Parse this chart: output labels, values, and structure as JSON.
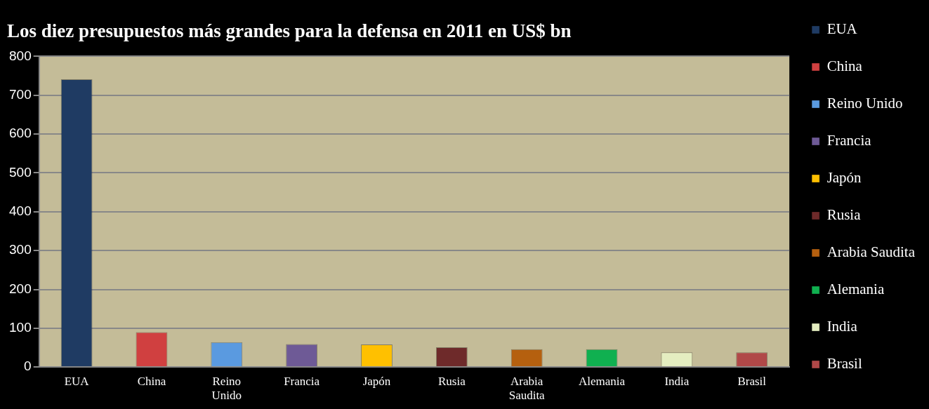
{
  "chart_data": {
    "type": "bar",
    "title": "Los diez presupuestos más grandes para la defensa en 2011 en US$ bn",
    "categories": [
      "EUA",
      "China",
      "Reino Unido",
      "Francia",
      "Japón",
      "Rusia",
      "Arabia Saudita",
      "Alemania",
      "India",
      "Brasil"
    ],
    "series": [
      {
        "name": "EUA",
        "color": "#1f3b63",
        "values": [
          741,
          null,
          null,
          null,
          null,
          null,
          null,
          null,
          null,
          null
        ]
      },
      {
        "name": "China",
        "color": "#d04040",
        "values": [
          null,
          90,
          null,
          null,
          null,
          null,
          null,
          null,
          null,
          null
        ]
      },
      {
        "name": "Reino Unido",
        "color": "#5a9ae0",
        "values": [
          null,
          null,
          64,
          null,
          null,
          null,
          null,
          null,
          null,
          null
        ]
      },
      {
        "name": "Francia",
        "color": "#6e5a96",
        "values": [
          null,
          null,
          null,
          59,
          null,
          null,
          null,
          null,
          null,
          null
        ]
      },
      {
        "name": "Japón",
        "color": "#ffc000",
        "values": [
          null,
          null,
          null,
          null,
          58,
          null,
          null,
          null,
          null,
          null
        ]
      },
      {
        "name": "Rusia",
        "color": "#6e2a2a",
        "values": [
          null,
          null,
          null,
          null,
          null,
          51,
          null,
          null,
          null,
          null
        ]
      },
      {
        "name": "Arabia Saudita",
        "color": "#b5600f",
        "values": [
          null,
          null,
          null,
          null,
          null,
          null,
          46,
          null,
          null,
          null
        ]
      },
      {
        "name": "Alemania",
        "color": "#10b050",
        "values": [
          null,
          null,
          null,
          null,
          null,
          null,
          null,
          46,
          null,
          null
        ]
      },
      {
        "name": "India",
        "color": "#e4edc0",
        "values": [
          null,
          null,
          null,
          null,
          null,
          null,
          null,
          null,
          38,
          null
        ]
      },
      {
        "name": "Brasil",
        "color": "#b04848",
        "values": [
          null,
          null,
          null,
          null,
          null,
          null,
          null,
          null,
          null,
          38
        ]
      }
    ],
    "ylim": [
      0,
      800
    ],
    "yticks": [
      0,
      100,
      200,
      300,
      400,
      500,
      600,
      700,
      800
    ],
    "grid": "y",
    "legend": "right"
  }
}
